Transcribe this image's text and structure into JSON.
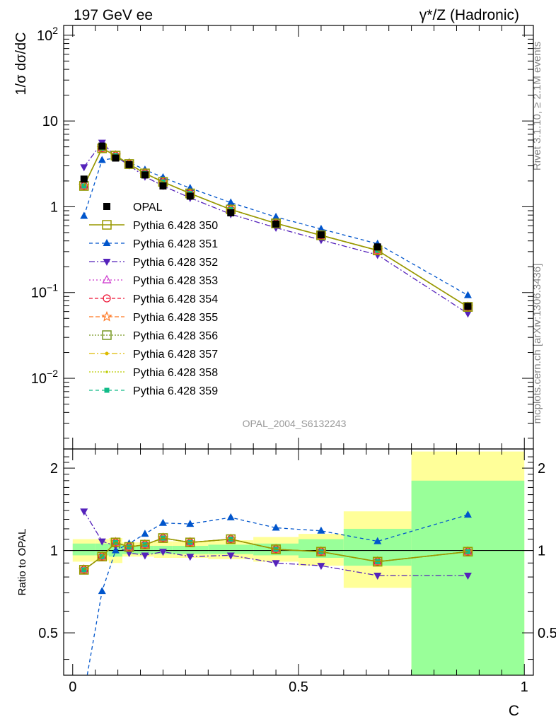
{
  "header": {
    "left_title": "197 GeV ee",
    "right_title": "γ*/Z (Hadronic)"
  },
  "side_labels": {
    "rivet": "Rivet 3.1.10, ≥ 2.1M events",
    "source": "mcplots.cern.ch [arXiv:1306.3436]"
  },
  "watermark": "OPAL_2004_S6132243",
  "colors": {
    "band_green": "#99ff99",
    "band_yellow": "#ffff99",
    "data": "#000000"
  },
  "chart_data": [
    {
      "type": "line",
      "panel": "main",
      "ylabel": "1/σ dσ/dC",
      "yscale": "log",
      "ylim": [
        0.0015,
        130
      ],
      "xlim": [
        -0.02,
        1.02
      ],
      "yticks": [
        {
          "value": 100,
          "base": "10",
          "exp": "2"
        },
        {
          "value": 10,
          "base": "10",
          "exp": ""
        },
        {
          "value": 1,
          "base": "1",
          "exp": ""
        },
        {
          "value": 0.1,
          "base": "10",
          "exp": "−1"
        },
        {
          "value": 0.01,
          "base": "10",
          "exp": "−2"
        }
      ],
      "x": [
        0.025,
        0.065,
        0.095,
        0.125,
        0.16,
        0.2,
        0.26,
        0.35,
        0.45,
        0.55,
        0.675,
        0.875
      ],
      "data": {
        "name": "OPAL",
        "values": [
          2.1,
          5.1,
          3.7,
          3.1,
          2.35,
          1.75,
          1.33,
          0.85,
          0.63,
          0.47,
          0.34,
          0.069
        ]
      },
      "series": [
        {
          "name": "Pythia 6.428 350",
          "color": "#999900",
          "dash": "",
          "marker": "square-open",
          "values": [
            1.75,
            4.8,
            3.95,
            3.15,
            2.45,
            1.95,
            1.43,
            0.93,
            0.64,
            0.465,
            0.31,
            0.068
          ]
        },
        {
          "name": "Pythia 6.428 351",
          "color": "#0055cc",
          "dash": "5,4",
          "marker": "triangle-up",
          "values": [
            0.78,
            3.5,
            3.7,
            3.3,
            2.7,
            2.2,
            1.65,
            1.12,
            0.76,
            0.55,
            0.37,
            0.093
          ]
        },
        {
          "name": "Pythia 6.428 352",
          "color": "#5522bb",
          "dash": "8,3,2,3",
          "marker": "triangle-down",
          "values": [
            2.9,
            5.6,
            3.85,
            3.05,
            2.25,
            1.75,
            1.27,
            0.82,
            0.57,
            0.41,
            0.275,
            0.057
          ]
        },
        {
          "name": "Pythia 6.428 353",
          "color": "#cc33cc",
          "dash": "2,3",
          "marker": "triangle-open",
          "values": [
            1.75,
            4.8,
            3.95,
            3.15,
            2.45,
            1.95,
            1.43,
            0.93,
            0.64,
            0.465,
            0.31,
            0.068
          ]
        },
        {
          "name": "Pythia 6.428 354",
          "color": "#ee1133",
          "dash": "5,3",
          "marker": "circle-open",
          "values": [
            1.75,
            4.8,
            3.95,
            3.15,
            2.45,
            1.95,
            1.43,
            0.93,
            0.64,
            0.465,
            0.31,
            0.068
          ]
        },
        {
          "name": "Pythia 6.428 355",
          "color": "#ff7722",
          "dash": "6,3",
          "marker": "star-open",
          "values": [
            1.75,
            4.8,
            3.95,
            3.15,
            2.45,
            1.95,
            1.43,
            0.93,
            0.64,
            0.465,
            0.31,
            0.068
          ]
        },
        {
          "name": "Pythia 6.428 356",
          "color": "#779922",
          "dash": "2,2",
          "marker": "square-open",
          "values": [
            1.75,
            4.8,
            3.95,
            3.15,
            2.45,
            1.95,
            1.43,
            0.93,
            0.64,
            0.465,
            0.31,
            0.068
          ]
        },
        {
          "name": "Pythia 6.428 357",
          "color": "#ddbb00",
          "dash": "8,3,2,3",
          "marker": "dot",
          "values": [
            1.75,
            4.8,
            3.95,
            3.15,
            2.45,
            1.95,
            1.43,
            0.93,
            0.64,
            0.465,
            0.31,
            0.068
          ]
        },
        {
          "name": "Pythia 6.428 358",
          "color": "#bbcc00",
          "dash": "2,2",
          "marker": "dot-small",
          "values": [
            1.75,
            4.8,
            3.95,
            3.15,
            2.45,
            1.95,
            1.43,
            0.93,
            0.64,
            0.465,
            0.31,
            0.068
          ]
        },
        {
          "name": "Pythia 6.428 359",
          "color": "#11bb88",
          "dash": "5,4",
          "marker": "square-filled",
          "values": [
            1.75,
            4.8,
            3.95,
            3.15,
            2.45,
            1.95,
            1.43,
            0.93,
            0.64,
            0.465,
            0.31,
            0.068
          ]
        }
      ]
    },
    {
      "type": "line",
      "panel": "ratio",
      "ylabel": "Ratio to OPAL",
      "xlabel": "C",
      "yscale": "log",
      "ylim": [
        0.35,
        2.35
      ],
      "xlim": [
        -0.02,
        1.02
      ],
      "yticks": [
        {
          "value": 0.5,
          "label": "0.5"
        },
        {
          "value": 1,
          "label": "1"
        },
        {
          "value": 2,
          "label": "2"
        }
      ],
      "xticks": [
        {
          "value": 0,
          "label": "0"
        },
        {
          "value": 0.5,
          "label": "0.5"
        },
        {
          "value": 1,
          "label": "1"
        }
      ],
      "bins": [
        {
          "lo": 0.0,
          "hi": 0.05,
          "yellow": [
            0.91,
            1.1
          ],
          "green": [
            0.96,
            1.06
          ]
        },
        {
          "lo": 0.05,
          "hi": 0.08,
          "yellow": [
            0.92,
            1.1
          ],
          "green": [
            0.96,
            1.06
          ]
        },
        {
          "lo": 0.08,
          "hi": 0.11,
          "yellow": [
            0.9,
            1.11
          ],
          "green": [
            0.95,
            1.06
          ]
        },
        {
          "lo": 0.11,
          "hi": 0.14,
          "yellow": [
            0.95,
            1.07
          ],
          "green": [
            0.97,
            1.04
          ]
        },
        {
          "lo": 0.14,
          "hi": 0.18,
          "yellow": [
            0.95,
            1.07
          ],
          "green": [
            0.97,
            1.04
          ]
        },
        {
          "lo": 0.18,
          "hi": 0.22,
          "yellow": [
            0.94,
            1.08
          ],
          "green": [
            0.97,
            1.04
          ]
        },
        {
          "lo": 0.22,
          "hi": 0.3,
          "yellow": [
            0.94,
            1.08
          ],
          "green": [
            0.97,
            1.04
          ]
        },
        {
          "lo": 0.3,
          "hi": 0.4,
          "yellow": [
            0.93,
            1.09
          ],
          "green": [
            0.97,
            1.05
          ]
        },
        {
          "lo": 0.4,
          "hi": 0.5,
          "yellow": [
            0.91,
            1.12
          ],
          "green": [
            0.96,
            1.06
          ]
        },
        {
          "lo": 0.5,
          "hi": 0.6,
          "yellow": [
            0.88,
            1.15
          ],
          "green": [
            0.94,
            1.1
          ]
        },
        {
          "lo": 0.6,
          "hi": 0.75,
          "yellow": [
            0.73,
            1.39
          ],
          "green": [
            0.88,
            1.2
          ]
        },
        {
          "lo": 0.75,
          "hi": 1.0,
          "yellow": [
            0.35,
            2.3
          ],
          "green": [
            0.35,
            1.8
          ]
        }
      ],
      "x": [
        0.025,
        0.065,
        0.095,
        0.125,
        0.16,
        0.2,
        0.26,
        0.35,
        0.45,
        0.55,
        0.675,
        0.875
      ],
      "series": [
        {
          "name": "Pythia 6.428 350",
          "values": [
            0.85,
            0.95,
            1.07,
            1.03,
            1.05,
            1.11,
            1.07,
            1.1,
            1.01,
            0.99,
            0.91,
            0.99
          ]
        },
        {
          "name": "Pythia 6.428 351",
          "values": [
            0.3,
            0.71,
            1.0,
            1.06,
            1.15,
            1.26,
            1.25,
            1.32,
            1.21,
            1.18,
            1.08,
            1.35
          ]
        },
        {
          "name": "Pythia 6.428 352",
          "values": [
            1.39,
            1.08,
            1.04,
            0.98,
            0.96,
            0.99,
            0.95,
            0.96,
            0.9,
            0.88,
            0.81,
            0.81
          ]
        },
        {
          "name": "Pythia 6.428 353",
          "values": [
            0.85,
            0.95,
            1.07,
            1.03,
            1.05,
            1.11,
            1.07,
            1.1,
            1.01,
            0.99,
            0.91,
            0.99
          ]
        },
        {
          "name": "Pythia 6.428 354",
          "values": [
            0.85,
            0.95,
            1.07,
            1.03,
            1.05,
            1.11,
            1.07,
            1.1,
            1.01,
            0.99,
            0.91,
            0.99
          ]
        },
        {
          "name": "Pythia 6.428 355",
          "values": [
            0.85,
            0.95,
            1.07,
            1.03,
            1.05,
            1.11,
            1.07,
            1.1,
            1.01,
            0.99,
            0.91,
            0.99
          ]
        },
        {
          "name": "Pythia 6.428 356",
          "values": [
            0.85,
            0.95,
            1.07,
            1.03,
            1.05,
            1.11,
            1.07,
            1.1,
            1.01,
            0.99,
            0.91,
            0.99
          ]
        },
        {
          "name": "Pythia 6.428 357",
          "values": [
            0.85,
            0.95,
            1.07,
            1.03,
            1.05,
            1.11,
            1.07,
            1.1,
            1.01,
            0.99,
            0.91,
            0.99
          ]
        },
        {
          "name": "Pythia 6.428 358",
          "values": [
            0.85,
            0.95,
            1.07,
            1.03,
            1.05,
            1.11,
            1.07,
            1.1,
            1.01,
            0.99,
            0.91,
            0.99
          ]
        },
        {
          "name": "Pythia 6.428 359",
          "values": [
            0.85,
            0.95,
            1.07,
            1.03,
            1.05,
            1.11,
            1.07,
            1.1,
            1.01,
            0.99,
            0.91,
            0.99
          ]
        }
      ]
    }
  ]
}
